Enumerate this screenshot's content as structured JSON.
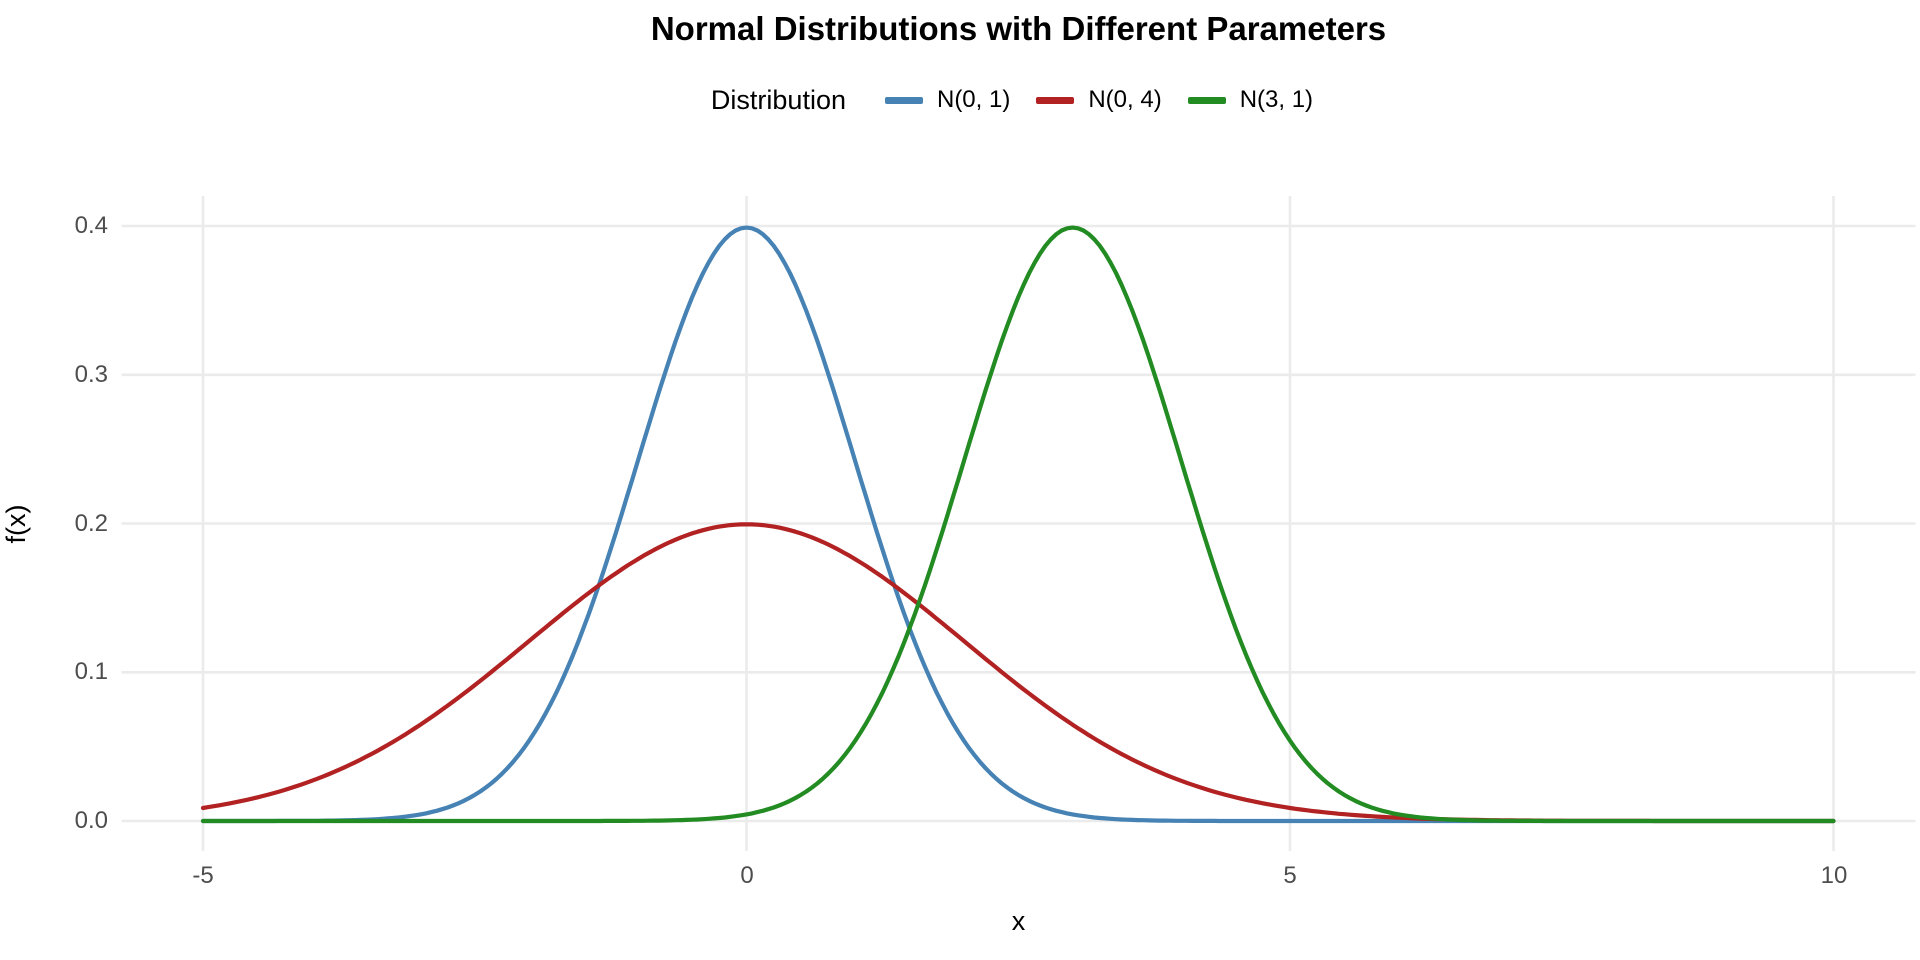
{
  "chart_data": {
    "type": "line",
    "title": "Normal Distributions with Different Parameters",
    "xlabel": "x",
    "ylabel": "f(x)",
    "legend": {
      "title": "Distribution",
      "position": "top"
    },
    "x_range": [
      -5,
      10
    ],
    "y_range": [
      0,
      0.4
    ],
    "x_ticks": [
      -5,
      0,
      5,
      10
    ],
    "x_tick_labels": [
      "-5",
      "0",
      "5",
      "10"
    ],
    "y_ticks": [
      0.0,
      0.1,
      0.2,
      0.3,
      0.4
    ],
    "y_tick_labels": [
      "0.0",
      "0.1",
      "0.2",
      "0.3",
      "0.4"
    ],
    "grid": "major-only",
    "colors": {
      "background": "#FFFFFF",
      "grid": "#EBEBEB",
      "axis_text": "#4D4D4D",
      "title_text": "#000000"
    },
    "series": [
      {
        "name": "N(0, 1)",
        "mean": 0,
        "variance": 1,
        "sd": 1,
        "peak": 0.3989,
        "color": "#4682B4",
        "sample_x": [
          -5,
          -4.5,
          -4,
          -3.5,
          -3,
          -2.5,
          -2,
          -1.5,
          -1,
          -0.5,
          0,
          0.5,
          1,
          1.5,
          2,
          2.5,
          3,
          3.5,
          4,
          4.5,
          5,
          5.5,
          6,
          6.5,
          7,
          7.5,
          8,
          8.5,
          9,
          9.5,
          10
        ],
        "sample_y": [
          0,
          0,
          0.0001,
          0.0009,
          0.0044,
          0.0175,
          0.054,
          0.1295,
          0.242,
          0.3521,
          0.3989,
          0.3521,
          0.242,
          0.1295,
          0.054,
          0.0175,
          0.0044,
          0.0009,
          0.0001,
          0,
          0,
          0,
          0,
          0,
          0,
          0,
          0,
          0,
          0,
          0,
          0
        ]
      },
      {
        "name": "N(0, 4)",
        "mean": 0,
        "variance": 4,
        "sd": 2,
        "peak": 0.1995,
        "color": "#B22222",
        "sample_x": [
          -5,
          -4.5,
          -4,
          -3.5,
          -3,
          -2.5,
          -2,
          -1.5,
          -1,
          -0.5,
          0,
          0.5,
          1,
          1.5,
          2,
          2.5,
          3,
          3.5,
          4,
          4.5,
          5,
          5.5,
          6,
          6.5,
          7,
          7.5,
          8,
          8.5,
          9,
          9.5,
          10
        ],
        "sample_y": [
          0.0088,
          0.0159,
          0.027,
          0.0431,
          0.0648,
          0.0913,
          0.121,
          0.1506,
          0.176,
          0.1933,
          0.1995,
          0.1933,
          0.176,
          0.1506,
          0.121,
          0.0913,
          0.0648,
          0.0431,
          0.027,
          0.0159,
          0.0088,
          0.0046,
          0.0022,
          0.001,
          0.0004,
          0.0002,
          0.0001,
          0,
          0,
          0,
          0
        ]
      },
      {
        "name": "N(3, 1)",
        "mean": 3,
        "variance": 1,
        "sd": 1,
        "peak": 0.3989,
        "color": "#228B22",
        "sample_x": [
          -5,
          -4.5,
          -4,
          -3.5,
          -3,
          -2.5,
          -2,
          -1.5,
          -1,
          -0.5,
          0,
          0.5,
          1,
          1.5,
          2,
          2.5,
          3,
          3.5,
          4,
          4.5,
          5,
          5.5,
          6,
          6.5,
          7,
          7.5,
          8,
          8.5,
          9,
          9.5,
          10
        ],
        "sample_y": [
          0,
          0,
          0,
          0,
          0,
          0,
          0,
          0,
          0.0001,
          0.0009,
          0.0044,
          0.0175,
          0.054,
          0.1295,
          0.242,
          0.3521,
          0.3989,
          0.3521,
          0.242,
          0.1295,
          0.054,
          0.0175,
          0.0044,
          0.0009,
          0.0001,
          0,
          0,
          0,
          0,
          0,
          0
        ]
      }
    ]
  }
}
